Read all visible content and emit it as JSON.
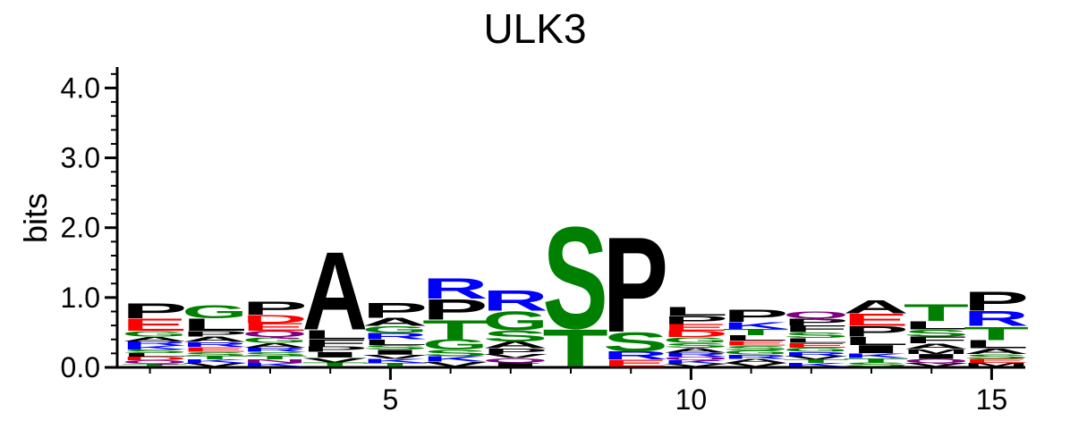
{
  "chart_data": {
    "type": "sequence-logo",
    "title": "ULK3",
    "ylabel": "bits",
    "xlabel": "",
    "ylim": [
      0,
      4.3
    ],
    "y_ticks": [
      {
        "value": 0,
        "label": "0.0"
      },
      {
        "value": 1,
        "label": "1.0"
      },
      {
        "value": 2,
        "label": "2.0"
      },
      {
        "value": 3,
        "label": "3.0"
      },
      {
        "value": 4,
        "label": "4.0"
      }
    ],
    "x_ticks": [
      {
        "value": 5,
        "label": "5"
      },
      {
        "value": 10,
        "label": "10"
      },
      {
        "value": 15,
        "label": "15"
      }
    ],
    "residue_colors": {
      "acidic": "#ff0000",
      "basic": "#0000ff",
      "polar": "#008000",
      "amide": "#800080",
      "hydrophobic": "#000000"
    },
    "positions": [
      {
        "pos": 1,
        "letters": [
          {
            "aa": "P",
            "h": 0.22,
            "color": "#000000"
          },
          {
            "aa": "E",
            "h": 0.18,
            "color": "#ff0000"
          },
          {
            "aa": "G",
            "h": 0.08,
            "color": "#008000"
          },
          {
            "aa": "A",
            "h": 0.07,
            "color": "#000000"
          },
          {
            "aa": "K",
            "h": 0.06,
            "color": "#0000ff"
          },
          {
            "aa": "R",
            "h": 0.06,
            "color": "#0000ff"
          },
          {
            "aa": "Q",
            "h": 0.05,
            "color": "#800080"
          },
          {
            "aa": "D",
            "h": 0.05,
            "color": "#ff0000"
          },
          {
            "aa": "L",
            "h": 0.05,
            "color": "#000000"
          },
          {
            "aa": "S",
            "h": 0.05,
            "color": "#008000"
          },
          {
            "aa": "T",
            "h": 0.04,
            "color": "#008000"
          }
        ]
      },
      {
        "pos": 2,
        "letters": [
          {
            "aa": "G",
            "h": 0.2,
            "color": "#008000"
          },
          {
            "aa": "L",
            "h": 0.18,
            "color": "#000000"
          },
          {
            "aa": "A",
            "h": 0.08,
            "color": "#000000"
          },
          {
            "aa": "P",
            "h": 0.08,
            "color": "#000000"
          },
          {
            "aa": "E",
            "h": 0.07,
            "color": "#ff0000"
          },
          {
            "aa": "R",
            "h": 0.07,
            "color": "#0000ff"
          },
          {
            "aa": "S",
            "h": 0.06,
            "color": "#008000"
          },
          {
            "aa": "V",
            "h": 0.05,
            "color": "#000000"
          },
          {
            "aa": "K",
            "h": 0.05,
            "color": "#0000ff"
          },
          {
            "aa": "T",
            "h": 0.05,
            "color": "#008000"
          }
        ]
      },
      {
        "pos": 3,
        "letters": [
          {
            "aa": "P",
            "h": 0.2,
            "color": "#000000"
          },
          {
            "aa": "D",
            "h": 0.12,
            "color": "#ff0000"
          },
          {
            "aa": "E",
            "h": 0.11,
            "color": "#ff0000"
          },
          {
            "aa": "Q",
            "h": 0.09,
            "color": "#800080"
          },
          {
            "aa": "G",
            "h": 0.08,
            "color": "#008000"
          },
          {
            "aa": "A",
            "h": 0.07,
            "color": "#000000"
          },
          {
            "aa": "S",
            "h": 0.06,
            "color": "#008000"
          },
          {
            "aa": "R",
            "h": 0.06,
            "color": "#0000ff"
          },
          {
            "aa": "K",
            "h": 0.05,
            "color": "#0000ff"
          },
          {
            "aa": "N",
            "h": 0.05,
            "color": "#800080"
          },
          {
            "aa": "T",
            "h": 0.05,
            "color": "#008000"
          }
        ]
      },
      {
        "pos": 4,
        "letters": [
          {
            "aa": "A",
            "h": 1.15,
            "color": "#000000"
          },
          {
            "aa": "L",
            "h": 0.14,
            "color": "#000000"
          },
          {
            "aa": "F",
            "h": 0.1,
            "color": "#000000"
          },
          {
            "aa": "I",
            "h": 0.08,
            "color": "#000000"
          },
          {
            "aa": "P",
            "h": 0.08,
            "color": "#000000"
          },
          {
            "aa": "V",
            "h": 0.07,
            "color": "#000000"
          },
          {
            "aa": "T",
            "h": 0.06,
            "color": "#008000"
          }
        ]
      },
      {
        "pos": 5,
        "letters": [
          {
            "aa": "P",
            "h": 0.22,
            "color": "#000000"
          },
          {
            "aa": "A",
            "h": 0.12,
            "color": "#000000"
          },
          {
            "aa": "G",
            "h": 0.1,
            "color": "#008000"
          },
          {
            "aa": "R",
            "h": 0.09,
            "color": "#0000ff"
          },
          {
            "aa": "L",
            "h": 0.08,
            "color": "#000000"
          },
          {
            "aa": "I",
            "h": 0.07,
            "color": "#000000"
          },
          {
            "aa": "S",
            "h": 0.07,
            "color": "#008000"
          },
          {
            "aa": "K",
            "h": 0.06,
            "color": "#0000ff"
          },
          {
            "aa": "V",
            "h": 0.06,
            "color": "#000000"
          },
          {
            "aa": "T",
            "h": 0.05,
            "color": "#008000"
          }
        ]
      },
      {
        "pos": 6,
        "letters": [
          {
            "aa": "P",
            "h": 0.3,
            "color": "#000000"
          },
          {
            "aa": "R",
            "h": 0.3,
            "color": "#0000ff"
          },
          {
            "aa": "T",
            "h": 0.28,
            "color": "#008000"
          },
          {
            "aa": "G",
            "h": 0.15,
            "color": "#008000"
          },
          {
            "aa": "S",
            "h": 0.09,
            "color": "#008000"
          },
          {
            "aa": "K",
            "h": 0.08,
            "color": "#0000ff"
          },
          {
            "aa": "V",
            "h": 0.07,
            "color": "#000000"
          }
        ]
      },
      {
        "pos": 7,
        "letters": [
          {
            "aa": "R",
            "h": 0.3,
            "color": "#0000ff"
          },
          {
            "aa": "G",
            "h": 0.28,
            "color": "#008000"
          },
          {
            "aa": "S",
            "h": 0.16,
            "color": "#008000"
          },
          {
            "aa": "A",
            "h": 0.1,
            "color": "#000000"
          },
          {
            "aa": "P",
            "h": 0.08,
            "color": "#000000"
          },
          {
            "aa": "I",
            "h": 0.06,
            "color": "#000000"
          },
          {
            "aa": "Q",
            "h": 0.06,
            "color": "#800080"
          },
          {
            "aa": "V",
            "h": 0.06,
            "color": "#000000"
          }
        ]
      },
      {
        "pos": 8,
        "letters": [
          {
            "aa": "S",
            "h": 1.5,
            "color": "#008000"
          },
          {
            "aa": "T",
            "h": 0.55,
            "color": "#008000"
          }
        ]
      },
      {
        "pos": 9,
        "letters": [
          {
            "aa": "P",
            "h": 1.4,
            "color": "#000000"
          },
          {
            "aa": "S",
            "h": 0.28,
            "color": "#008000"
          },
          {
            "aa": "E",
            "h": 0.1,
            "color": "#ff0000"
          },
          {
            "aa": "R",
            "h": 0.12,
            "color": "#0000ff"
          }
        ]
      },
      {
        "pos": 10,
        "letters": [
          {
            "aa": "L",
            "h": 0.13,
            "color": "#000000"
          },
          {
            "aa": "P",
            "h": 0.12,
            "color": "#000000"
          },
          {
            "aa": "E",
            "h": 0.1,
            "color": "#ff0000"
          },
          {
            "aa": "D",
            "h": 0.09,
            "color": "#ff0000"
          },
          {
            "aa": "G",
            "h": 0.08,
            "color": "#008000"
          },
          {
            "aa": "A",
            "h": 0.07,
            "color": "#000000"
          },
          {
            "aa": "S",
            "h": 0.07,
            "color": "#008000"
          },
          {
            "aa": "R",
            "h": 0.06,
            "color": "#0000ff"
          },
          {
            "aa": "K",
            "h": 0.05,
            "color": "#0000ff"
          },
          {
            "aa": "Q",
            "h": 0.05,
            "color": "#800080"
          },
          {
            "aa": "V",
            "h": 0.04,
            "color": "#000000"
          }
        ]
      },
      {
        "pos": 11,
        "letters": [
          {
            "aa": "P",
            "h": 0.18,
            "color": "#000000"
          },
          {
            "aa": "K",
            "h": 0.1,
            "color": "#0000ff"
          },
          {
            "aa": "T",
            "h": 0.09,
            "color": "#008000"
          },
          {
            "aa": "L",
            "h": 0.08,
            "color": "#000000"
          },
          {
            "aa": "S",
            "h": 0.07,
            "color": "#008000"
          },
          {
            "aa": "E",
            "h": 0.07,
            "color": "#ff0000"
          },
          {
            "aa": "A",
            "h": 0.06,
            "color": "#000000"
          },
          {
            "aa": "R",
            "h": 0.06,
            "color": "#0000ff"
          },
          {
            "aa": "G",
            "h": 0.06,
            "color": "#008000"
          },
          {
            "aa": "V",
            "h": 0.05,
            "color": "#000000"
          }
        ]
      },
      {
        "pos": 12,
        "letters": [
          {
            "aa": "F",
            "h": 0.1,
            "color": "#000000"
          },
          {
            "aa": "P",
            "h": 0.1,
            "color": "#000000"
          },
          {
            "aa": "Q",
            "h": 0.1,
            "color": "#800080"
          },
          {
            "aa": "S",
            "h": 0.08,
            "color": "#008000"
          },
          {
            "aa": "E",
            "h": 0.07,
            "color": "#ff0000"
          },
          {
            "aa": "L",
            "h": 0.07,
            "color": "#000000"
          },
          {
            "aa": "R",
            "h": 0.06,
            "color": "#0000ff"
          },
          {
            "aa": "G",
            "h": 0.06,
            "color": "#008000"
          },
          {
            "aa": "K",
            "h": 0.05,
            "color": "#0000ff"
          },
          {
            "aa": "T",
            "h": 0.05,
            "color": "#008000"
          },
          {
            "aa": "V",
            "h": 0.05,
            "color": "#000000"
          }
        ]
      },
      {
        "pos": 13,
        "letters": [
          {
            "aa": "A",
            "h": 0.2,
            "color": "#000000"
          },
          {
            "aa": "E",
            "h": 0.18,
            "color": "#ff0000"
          },
          {
            "aa": "P",
            "h": 0.15,
            "color": "#000000"
          },
          {
            "aa": "I",
            "h": 0.12,
            "color": "#000000"
          },
          {
            "aa": "L",
            "h": 0.12,
            "color": "#000000"
          },
          {
            "aa": "K",
            "h": 0.07,
            "color": "#0000ff"
          },
          {
            "aa": "S",
            "h": 0.06,
            "color": "#008000"
          },
          {
            "aa": "T",
            "h": 0.06,
            "color": "#008000"
          }
        ]
      },
      {
        "pos": 14,
        "letters": [
          {
            "aa": "T",
            "h": 0.25,
            "color": "#008000"
          },
          {
            "aa": "L",
            "h": 0.12,
            "color": "#000000"
          },
          {
            "aa": "F",
            "h": 0.1,
            "color": "#000000"
          },
          {
            "aa": "S",
            "h": 0.1,
            "color": "#008000"
          },
          {
            "aa": "A",
            "h": 0.08,
            "color": "#000000"
          },
          {
            "aa": "I",
            "h": 0.07,
            "color": "#000000"
          },
          {
            "aa": "M",
            "h": 0.07,
            "color": "#000000"
          },
          {
            "aa": "Q",
            "h": 0.06,
            "color": "#800080"
          },
          {
            "aa": "V",
            "h": 0.05,
            "color": "#000000"
          }
        ]
      },
      {
        "pos": 15,
        "letters": [
          {
            "aa": "P",
            "h": 0.28,
            "color": "#000000"
          },
          {
            "aa": "R",
            "h": 0.22,
            "color": "#0000ff"
          },
          {
            "aa": "T",
            "h": 0.2,
            "color": "#008000"
          },
          {
            "aa": "L",
            "h": 0.12,
            "color": "#000000"
          },
          {
            "aa": "A",
            "h": 0.08,
            "color": "#000000"
          },
          {
            "aa": "S",
            "h": 0.07,
            "color": "#008000"
          },
          {
            "aa": "E",
            "h": 0.06,
            "color": "#ff0000"
          },
          {
            "aa": "M",
            "h": 0.05,
            "color": "#000000"
          }
        ]
      }
    ]
  }
}
